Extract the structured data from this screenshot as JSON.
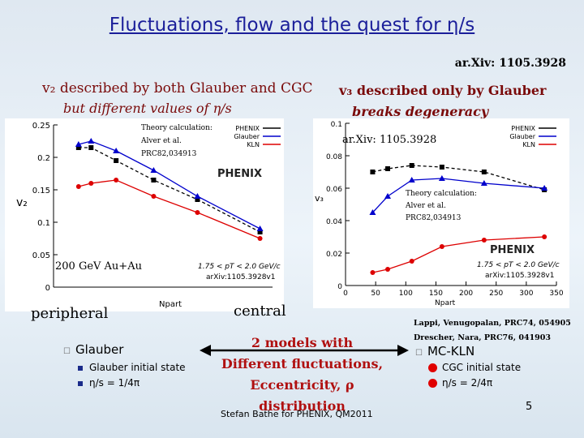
{
  "slide": {
    "title": "Fluctuations, flow and the quest for η/s",
    "ref_top": "ar.Xiv: 1105.3928",
    "v2_heading": "v₂ described by both Glauber and CGC",
    "v2_sub": "but different values of η/s",
    "v3_heading": "v₃ described only by Glauber",
    "v3_sub": "breaks degeneracy",
    "peripheral": "peripheral",
    "central": "central",
    "lappi_ref_1": "Lappi, Venugopalan, PRC74, 054905",
    "lappi_ref_2": "Drescher, Nara, PRC76, 041903",
    "models_1": "2 models with",
    "models_2": "Different fluctuations,",
    "models_3": "Eccentricity, ρ distribution",
    "footer": "Stefan Bathe for PHENIX, QM2011",
    "page_number": "5",
    "left_list": {
      "header": "Glauber",
      "item1": "Glauber initial state",
      "item2": "η/s = 1/4π"
    },
    "right_list": {
      "header": "MC-KLN",
      "item1": "CGC initial state",
      "item2": "η/s = 2/4π"
    },
    "colors": {
      "title": "#1b1f9a",
      "heading": "#7a0a0a",
      "models": "#b01010"
    }
  },
  "chart_data": [
    {
      "type": "scatter",
      "ylabel": "v₂",
      "xlabel": "Npart",
      "ylim": [
        0,
        0.25
      ],
      "xlim": [
        0,
        350
      ],
      "yticks": [
        "0",
        "0.05",
        "0.1",
        "0.15",
        "0.2",
        "0.25"
      ],
      "legend": [
        "PHENIX",
        "Glauber",
        "KLN"
      ],
      "legend_colors": [
        "#000000",
        "#0000cc",
        "#dd0000"
      ],
      "theory_1": "Theory calculation:",
      "theory_2": "Alver et al.",
      "theory_3": "PRC82,034913",
      "logo": "PHENIX",
      "system": "200 GeV Au+Au",
      "pt_label": "1.75 < pT < 2.0 GeV/c",
      "arxiv_label": "arXiv:1105.3928v1",
      "series": [
        {
          "name": "PHENIX",
          "color": "#000000",
          "x": [
            40,
            60,
            100,
            160,
            230,
            330
          ],
          "y": [
            0.215,
            0.215,
            0.195,
            0.165,
            0.135,
            0.085
          ]
        },
        {
          "name": "Glauber",
          "color": "#0000cc",
          "x": [
            40,
            60,
            100,
            160,
            230,
            330
          ],
          "y": [
            0.22,
            0.225,
            0.21,
            0.18,
            0.14,
            0.09
          ]
        },
        {
          "name": "KLN",
          "color": "#dd0000",
          "x": [
            40,
            60,
            100,
            160,
            230,
            330
          ],
          "y": [
            0.155,
            0.16,
            0.165,
            0.14,
            0.115,
            0.075
          ]
        }
      ]
    },
    {
      "type": "scatter",
      "ylabel": "v₃",
      "xlabel": "Npart",
      "ylim": [
        0,
        0.1
      ],
      "xlim": [
        0,
        350
      ],
      "xticks": [
        "0",
        "50",
        "100",
        "150",
        "200",
        "250",
        "300",
        "350"
      ],
      "yticks": [
        "0",
        "0.02",
        "0.04",
        "0.06",
        "0.08",
        "0.1"
      ],
      "legend": [
        "PHENIX",
        "Glauber",
        "KLN"
      ],
      "legend_colors": [
        "#000000",
        "#0000cc",
        "#dd0000"
      ],
      "ref": "ar.Xiv: 1105.3928",
      "theory_1": "Theory calculation:",
      "theory_2": "Alver et al.",
      "theory_3": "PRC82,034913",
      "logo": "PHENIX",
      "pt_label": "1.75 < pT < 2.0 GeV/c",
      "arxiv_label": "arXiv:1105.3928v1",
      "series": [
        {
          "name": "PHENIX",
          "color": "#000000",
          "x": [
            45,
            70,
            110,
            160,
            230,
            330
          ],
          "y": [
            0.07,
            0.072,
            0.074,
            0.073,
            0.07,
            0.059
          ]
        },
        {
          "name": "Glauber",
          "color": "#0000cc",
          "x": [
            45,
            70,
            110,
            160,
            230,
            330
          ],
          "y": [
            0.045,
            0.055,
            0.065,
            0.066,
            0.063,
            0.06
          ]
        },
        {
          "name": "KLN",
          "color": "#dd0000",
          "x": [
            45,
            70,
            110,
            160,
            230,
            330
          ],
          "y": [
            0.008,
            0.01,
            0.015,
            0.024,
            0.028,
            0.03
          ]
        }
      ]
    }
  ]
}
